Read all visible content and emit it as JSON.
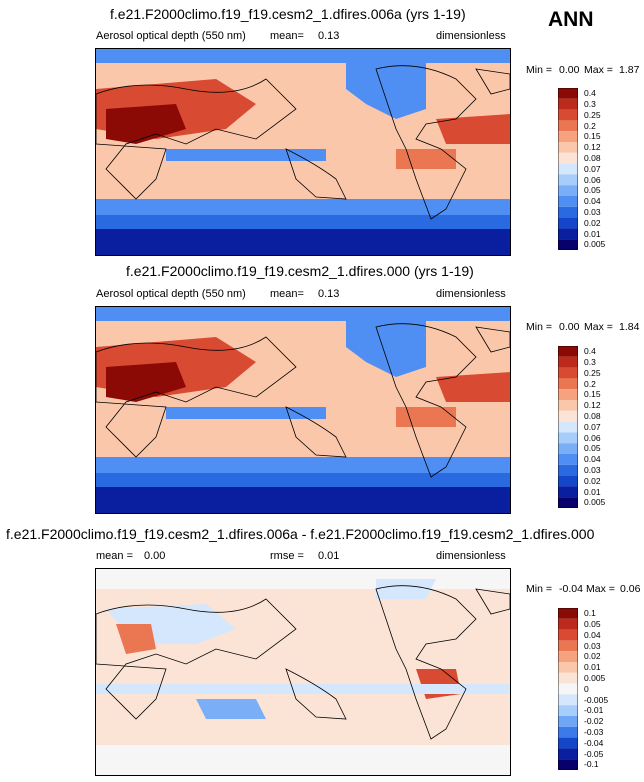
{
  "season": "ANN",
  "panels": [
    {
      "title": "f.e21.F2000climo.f19_f19.cesm2_1.dfires.006a (yrs 1-19)",
      "left_label": "Aerosol optical depth (550 nm)",
      "stat_label": "mean=",
      "stat_value": "0.13",
      "units": "dimensionless",
      "min_label": "Min =",
      "min_value": "0.00",
      "max_label": "Max =",
      "max_value": "1.87",
      "colorbar_labels": [
        "0.4",
        "0.3",
        "0.25",
        "0.2",
        "0.15",
        "0.12",
        "0.08",
        "0.07",
        "0.06",
        "0.05",
        "0.04",
        "0.03",
        "0.02",
        "0.01",
        "0.005"
      ]
    },
    {
      "title": "f.e21.F2000climo.f19_f19.cesm2_1.dfires.000 (yrs 1-19)",
      "left_label": "Aerosol optical depth (550 nm)",
      "stat_label": "mean=",
      "stat_value": "0.13",
      "units": "dimensionless",
      "min_label": "Min =",
      "min_value": "0.00",
      "max_label": "Max =",
      "max_value": "1.84",
      "colorbar_labels": [
        "0.4",
        "0.3",
        "0.25",
        "0.2",
        "0.15",
        "0.12",
        "0.08",
        "0.07",
        "0.06",
        "0.05",
        "0.04",
        "0.03",
        "0.02",
        "0.01",
        "0.005"
      ]
    },
    {
      "title": "f.e21.F2000climo.f19_f19.cesm2_1.dfires.006a - f.e21.F2000climo.f19_f19.cesm2_1.dfires.000",
      "left_label": "mean =",
      "left_value": "0.00",
      "stat_label": "rmse =",
      "stat_value": "0.01",
      "units": "dimensionless",
      "min_label": "Min =",
      "min_value": "-0.04",
      "max_label": "Max =",
      "max_value": "0.06",
      "colorbar_labels": [
        "0.1",
        "0.05",
        "0.04",
        "0.03",
        "0.02",
        "0.01",
        "0.005",
        "0",
        "-0.005",
        "-0.01",
        "-0.02",
        "-0.03",
        "-0.04",
        "-0.05",
        "-0.1"
      ]
    }
  ],
  "colors": {
    "abs_scale": [
      "#08006b",
      "#0a1fa0",
      "#1346c8",
      "#2a6ae0",
      "#4f8ef2",
      "#7aaff7",
      "#a7cdfb",
      "#d4e7fd",
      "#fbe4d6",
      "#fbc7ab",
      "#f6a27f",
      "#ea7652",
      "#d84a31",
      "#bb2a1b",
      "#8b0a06"
    ],
    "diff_scale": [
      "#08006b",
      "#0a1fa0",
      "#1346c8",
      "#3b7ae8",
      "#6fa5f5",
      "#a7cdfb",
      "#d4e7fd",
      "#f6f6f6",
      "#fbe4d6",
      "#fbc7ab",
      "#f6a27f",
      "#ea7652",
      "#d84a31",
      "#bb2a1b",
      "#8b0a06"
    ],
    "coastline": "#000000"
  }
}
